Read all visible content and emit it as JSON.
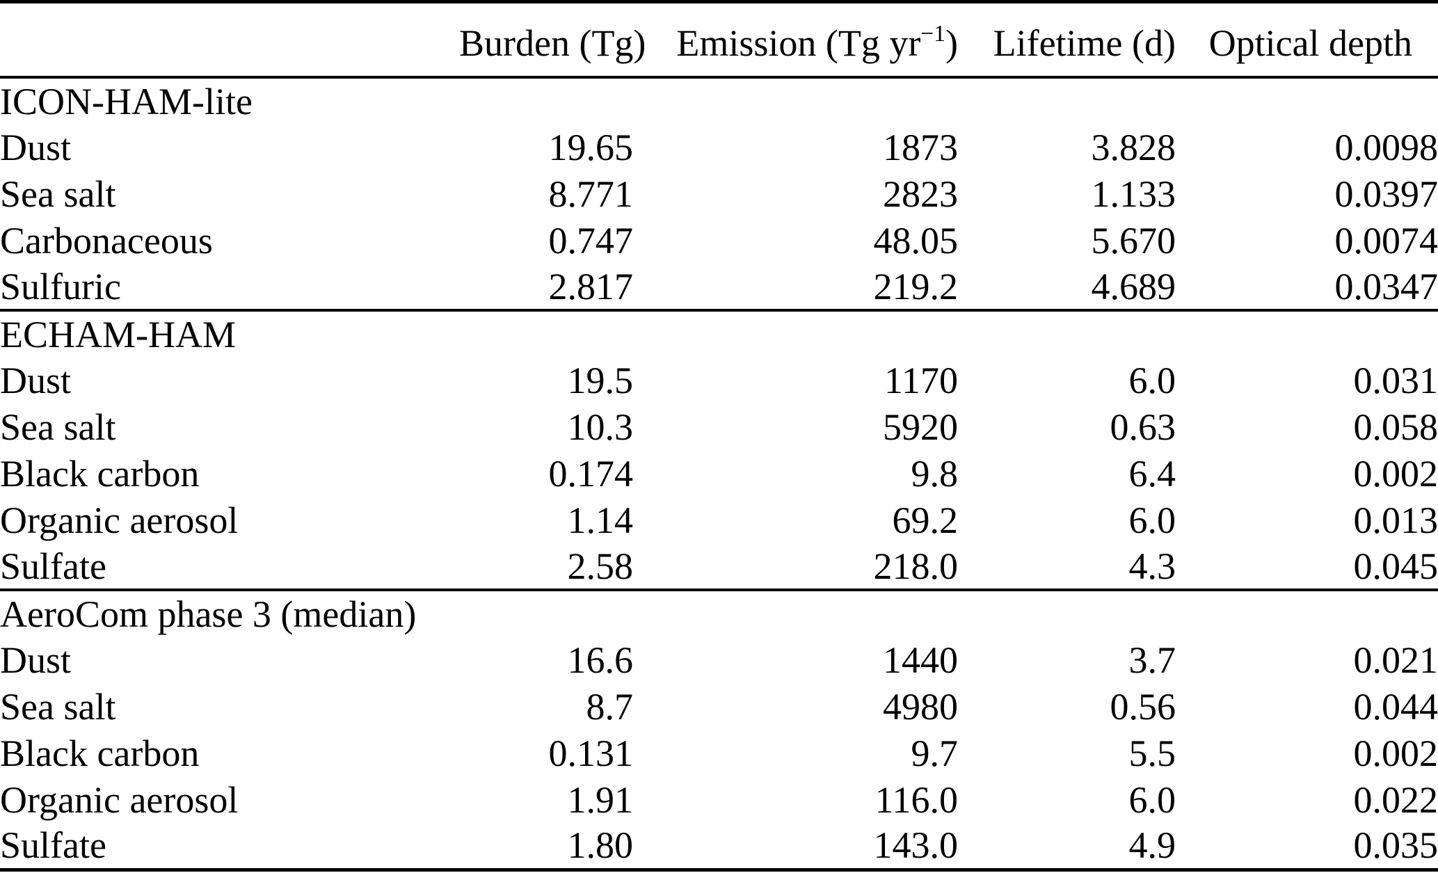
{
  "colors": {
    "background": "#ffffff",
    "text": "#000000",
    "rule": "#000000"
  },
  "table": {
    "columns": [
      {
        "label": ""
      },
      {
        "label": "Burden (Tg)"
      },
      {
        "label_pre": "Emission (Tg yr",
        "sup": "−1",
        "label_post": ")"
      },
      {
        "label": "Lifetime (d)"
      },
      {
        "label": "Optical depth"
      }
    ],
    "sections": [
      {
        "title": "ICON-HAM-lite",
        "rows": [
          {
            "label": "Dust",
            "burden": "19.65",
            "emission": "1873",
            "lifetime": "3.828",
            "optical_depth": "0.0098"
          },
          {
            "label": "Sea salt",
            "burden": "8.771",
            "emission": "2823",
            "lifetime": "1.133",
            "optical_depth": "0.0397"
          },
          {
            "label": "Carbonaceous",
            "burden": "0.747",
            "emission": "48.05",
            "lifetime": "5.670",
            "optical_depth": "0.0074"
          },
          {
            "label": "Sulfuric",
            "burden": "2.817",
            "emission": "219.2",
            "lifetime": "4.689",
            "optical_depth": "0.0347"
          }
        ]
      },
      {
        "title": "ECHAM-HAM",
        "rows": [
          {
            "label": "Dust",
            "burden": "19.5",
            "emission": "1170",
            "lifetime": "6.0",
            "optical_depth": "0.031"
          },
          {
            "label": "Sea salt",
            "burden": "10.3",
            "emission": "5920",
            "lifetime": "0.63",
            "optical_depth": "0.058"
          },
          {
            "label": "Black carbon",
            "burden": "0.174",
            "emission": "9.8",
            "lifetime": "6.4",
            "optical_depth": "0.002"
          },
          {
            "label": "Organic aerosol",
            "burden": "1.14",
            "emission": "69.2",
            "lifetime": "6.0",
            "optical_depth": "0.013"
          },
          {
            "label": "Sulfate",
            "burden": "2.58",
            "emission": "218.0",
            "lifetime": "4.3",
            "optical_depth": "0.045"
          }
        ]
      },
      {
        "title": "AeroCom phase 3 (median)",
        "rows": [
          {
            "label": "Dust",
            "burden": "16.6",
            "emission": "1440",
            "lifetime": "3.7",
            "optical_depth": "0.021"
          },
          {
            "label": "Sea salt",
            "burden": "8.7",
            "emission": "4980",
            "lifetime": "0.56",
            "optical_depth": "0.044"
          },
          {
            "label": "Black carbon",
            "burden": "0.131",
            "emission": "9.7",
            "lifetime": "5.5",
            "optical_depth": "0.002"
          },
          {
            "label": "Organic aerosol",
            "burden": "1.91",
            "emission": "116.0",
            "lifetime": "6.0",
            "optical_depth": "0.022"
          },
          {
            "label": "Sulfate",
            "burden": "1.80",
            "emission": "143.0",
            "lifetime": "4.9",
            "optical_depth": "0.035"
          }
        ]
      }
    ]
  }
}
